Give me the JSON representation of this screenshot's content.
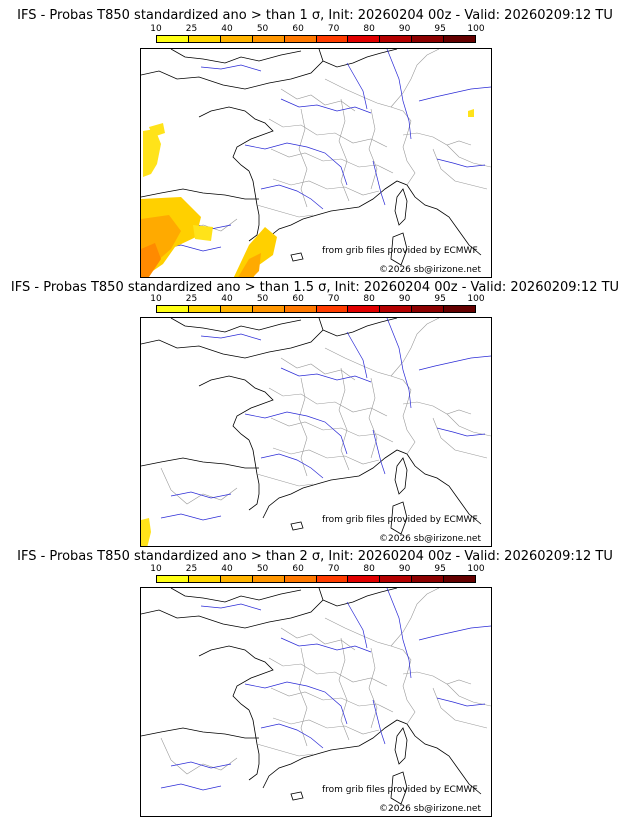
{
  "colorbar": {
    "ticks": [
      "10",
      "25",
      "40",
      "50",
      "60",
      "70",
      "80",
      "90",
      "95",
      "100"
    ],
    "colors": [
      "#ffff14",
      "#ffd700",
      "#ffb400",
      "#ff9600",
      "#ff7800",
      "#ff3c00",
      "#e10000",
      "#b40000",
      "#8c0000",
      "#640000"
    ]
  },
  "panels": [
    {
      "title": "IFS - Probas T850  standardized ano > than 1 σ, Init: 20260204 00z - Valid: 20260209:12 TU",
      "source": "from grib files provided by ECMWF",
      "copyright": "©2026 sb@irizone.net"
    },
    {
      "title": "IFS - Probas T850  standardized ano > than 1.5 σ, Init: 20260204 00z - Valid: 20260209:12 TU",
      "source": "from grib files provided by ECMWF",
      "copyright": "©2026 sb@irizone.net"
    },
    {
      "title": "IFS - Probas T850  standardized ano > than 2 σ, Init: 20260204 00z - Valid: 20260209:12 TU",
      "source": "from grib files provided by ECMWF",
      "copyright": "©2026 sb@irizone.net"
    }
  ]
}
